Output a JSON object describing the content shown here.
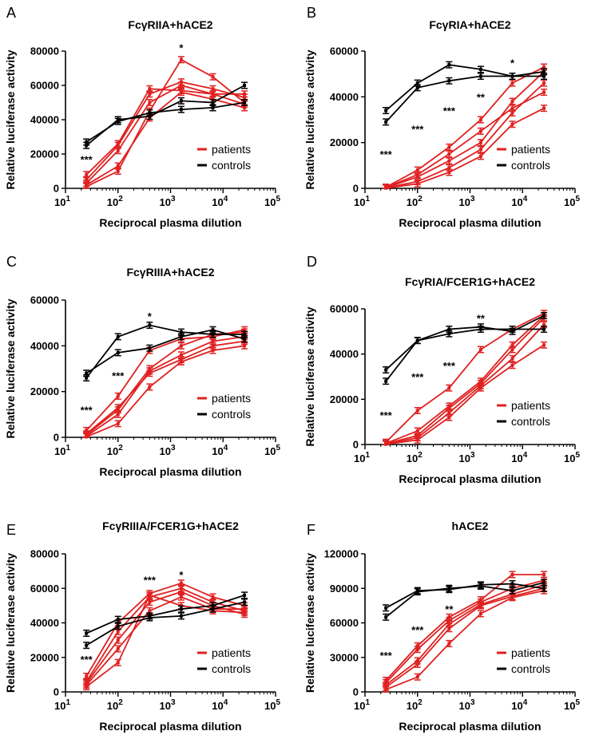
{
  "figure": {
    "description_free": true
  },
  "colors": {
    "patients": "#e02020",
    "controls": "#000000"
  },
  "chart_data": [
    {
      "panel": "A",
      "type": "line",
      "title": "FcγRIIA+hACE2",
      "xlabel": "Reciprocal plasma dilution",
      "ylabel": "Relative luciferase activity",
      "xscale": "log",
      "xlim": [
        10,
        100000
      ],
      "ylim": [
        0,
        80000
      ],
      "yticks": [
        0,
        20000,
        40000,
        60000,
        80000
      ],
      "legend": {
        "entries": [
          "patients",
          "controls"
        ],
        "position": "bottom-right"
      },
      "x": [
        25,
        100,
        400,
        1600,
        6400,
        25600
      ],
      "series": [
        {
          "group": "patients",
          "values": [
            1000,
            10000,
            45000,
            75000,
            65000,
            50000
          ]
        },
        {
          "group": "patients",
          "values": [
            3000,
            22000,
            50000,
            60000,
            55000,
            55000
          ]
        },
        {
          "group": "patients",
          "values": [
            5000,
            25000,
            55000,
            62000,
            58000,
            53000
          ]
        },
        {
          "group": "patients",
          "values": [
            8000,
            26000,
            58000,
            57000,
            55000,
            49000
          ]
        },
        {
          "group": "patients",
          "values": [
            2000,
            13000,
            41000,
            56000,
            52000,
            47000
          ]
        },
        {
          "group": "controls",
          "values": [
            25000,
            40000,
            42000,
            51000,
            50000,
            60000
          ]
        },
        {
          "group": "controls",
          "values": [
            27000,
            39000,
            44000,
            46000,
            47000,
            50000
          ]
        }
      ],
      "annotations": [
        {
          "x": 25,
          "y": 17000,
          "text": "***"
        },
        {
          "x": 1600,
          "y": 82000,
          "text": "*"
        }
      ]
    },
    {
      "panel": "B",
      "type": "line",
      "title": "FcγRIA+hACE2",
      "xlabel": "Reciprocal plasma dilution",
      "ylabel": "Relative luciferase activity",
      "xscale": "log",
      "xlim": [
        10,
        100000
      ],
      "ylim": [
        0,
        60000
      ],
      "yticks": [
        0,
        20000,
        40000,
        60000
      ],
      "legend": {
        "entries": [
          "patients",
          "controls"
        ],
        "position": "bottom-right"
      },
      "x": [
        25,
        100,
        400,
        1600,
        6400,
        25600
      ],
      "series": [
        {
          "group": "patients",
          "values": [
            500,
            8000,
            18000,
            30000,
            46000,
            53000
          ]
        },
        {
          "group": "patients",
          "values": [
            300,
            5000,
            12000,
            20000,
            38000,
            51000
          ]
        },
        {
          "group": "patients",
          "values": [
            200,
            3000,
            9000,
            17000,
            33000,
            46000
          ]
        },
        {
          "group": "patients",
          "values": [
            400,
            6000,
            15000,
            25000,
            35000,
            42000
          ]
        },
        {
          "group": "patients",
          "values": [
            100,
            2000,
            7000,
            14000,
            28000,
            35000
          ]
        },
        {
          "group": "controls",
          "values": [
            29000,
            44000,
            47000,
            49000,
            49000,
            49000
          ]
        },
        {
          "group": "controls",
          "values": [
            34000,
            46000,
            54000,
            52000,
            49000,
            51000
          ]
        }
      ],
      "annotations": [
        {
          "x": 25,
          "y": 15000,
          "text": "***"
        },
        {
          "x": 100,
          "y": 26000,
          "text": "***"
        },
        {
          "x": 400,
          "y": 34000,
          "text": "***"
        },
        {
          "x": 1600,
          "y": 40000,
          "text": "**"
        },
        {
          "x": 6400,
          "y": 55000,
          "text": "*"
        }
      ]
    },
    {
      "panel": "C",
      "type": "line",
      "title": "FcγRIIIA+hACE2",
      "xlabel": "Reciprocal plasma dilution",
      "ylabel": "Relative luciferase activity",
      "xscale": "log",
      "xlim": [
        10,
        100000
      ],
      "ylim": [
        0,
        60000
      ],
      "yticks": [
        0,
        20000,
        40000,
        60000
      ],
      "legend": {
        "entries": [
          "patients",
          "controls"
        ],
        "position": "bottom-right"
      },
      "x": [
        25,
        100,
        400,
        1600,
        6400,
        25600
      ],
      "series": [
        {
          "group": "patients",
          "values": [
            3000,
            18000,
            38000,
            43000,
            44000,
            47000
          ]
        },
        {
          "group": "patients",
          "values": [
            1000,
            12000,
            30000,
            40000,
            45000,
            46000
          ]
        },
        {
          "group": "patients",
          "values": [
            500,
            10000,
            29000,
            36000,
            42000,
            44000
          ]
        },
        {
          "group": "patients",
          "values": [
            1500,
            13000,
            28000,
            34000,
            40000,
            42000
          ]
        },
        {
          "group": "patients",
          "values": [
            200,
            6000,
            22000,
            33000,
            38000,
            40000
          ]
        },
        {
          "group": "controls",
          "values": [
            26000,
            44000,
            49000,
            46000,
            45000,
            45000
          ]
        },
        {
          "group": "controls",
          "values": [
            28000,
            37000,
            39000,
            44000,
            47000,
            43000
          ]
        }
      ],
      "annotations": [
        {
          "x": 25,
          "y": 12000,
          "text": "***"
        },
        {
          "x": 100,
          "y": 27000,
          "text": "***"
        },
        {
          "x": 400,
          "y": 53000,
          "text": "*"
        }
      ]
    },
    {
      "panel": "D",
      "type": "line",
      "title": "FcγRIA/FCER1G+hACE2",
      "xlabel": "Reciprocal plasma dilution",
      "ylabel": "Relative luciferase activity",
      "xscale": "log",
      "xlim": [
        10,
        100000
      ],
      "ylim": [
        0,
        60000
      ],
      "yticks": [
        0,
        20000,
        40000,
        60000
      ],
      "legend": {
        "entries": [
          "patients",
          "controls"
        ],
        "position": "bottom-right"
      },
      "x": [
        25,
        100,
        400,
        1600,
        6400,
        25600
      ],
      "series": [
        {
          "group": "patients",
          "values": [
            1000,
            15000,
            25000,
            42000,
            51000,
            58000
          ]
        },
        {
          "group": "patients",
          "values": [
            500,
            6000,
            17000,
            28000,
            44000,
            57000
          ]
        },
        {
          "group": "patients",
          "values": [
            300,
            4000,
            16000,
            27000,
            42000,
            56000
          ]
        },
        {
          "group": "patients",
          "values": [
            200,
            3000,
            14000,
            26000,
            38000,
            53000
          ]
        },
        {
          "group": "patients",
          "values": [
            100,
            2000,
            12000,
            25000,
            35000,
            44000
          ]
        },
        {
          "group": "controls",
          "values": [
            33000,
            46000,
            49000,
            51000,
            51000,
            51000
          ]
        },
        {
          "group": "controls",
          "values": [
            28000,
            46000,
            51000,
            52000,
            50000,
            57000
          ]
        }
      ],
      "annotations": [
        {
          "x": 25,
          "y": 13000,
          "text": "***"
        },
        {
          "x": 100,
          "y": 30000,
          "text": "***"
        },
        {
          "x": 400,
          "y": 35000,
          "text": "***"
        },
        {
          "x": 1600,
          "y": 56000,
          "text": "**"
        }
      ]
    },
    {
      "panel": "E",
      "type": "line",
      "title": "FcγRIIIA/FCER1G+hACE2",
      "xlabel": "Reciprocal plasma dilution",
      "ylabel": "Relative luciferase activity",
      "xscale": "log",
      "xlim": [
        10,
        100000
      ],
      "ylim": [
        0,
        80000
      ],
      "yticks": [
        0,
        20000,
        40000,
        60000,
        80000
      ],
      "legend": {
        "entries": [
          "patients",
          "controls"
        ],
        "position": "bottom-right"
      },
      "x": [
        25,
        100,
        400,
        1600,
        6400,
        25600
      ],
      "series": [
        {
          "group": "patients",
          "values": [
            9000,
            40000,
            57000,
            63000,
            55000,
            50000
          ]
        },
        {
          "group": "patients",
          "values": [
            6000,
            35000,
            55000,
            60000,
            52000,
            47000
          ]
        },
        {
          "group": "patients",
          "values": [
            5000,
            30000,
            52000,
            58000,
            50000,
            45000
          ]
        },
        {
          "group": "patients",
          "values": [
            4000,
            25000,
            47000,
            55000,
            48000,
            48000
          ]
        },
        {
          "group": "patients",
          "values": [
            3000,
            17000,
            56000,
            50000,
            47000,
            46000
          ]
        },
        {
          "group": "controls",
          "values": [
            34000,
            42000,
            44000,
            48000,
            50000,
            56000
          ]
        },
        {
          "group": "controls",
          "values": [
            27000,
            38000,
            43000,
            44000,
            48000,
            52000
          ]
        }
      ],
      "annotations": [
        {
          "x": 25,
          "y": 19000,
          "text": "***"
        },
        {
          "x": 400,
          "y": 65000,
          "text": "***"
        },
        {
          "x": 1600,
          "y": 68000,
          "text": "*"
        }
      ]
    },
    {
      "panel": "F",
      "type": "line",
      "title": "hACE2",
      "xlabel": "Reciprocal plasma dilution",
      "ylabel": "Relative luciferase activity",
      "xscale": "log",
      "xlim": [
        10,
        100000
      ],
      "ylim": [
        0,
        120000
      ],
      "yticks": [
        0,
        30000,
        60000,
        90000,
        120000
      ],
      "legend": {
        "entries": [
          "patients",
          "controls"
        ],
        "position": "bottom-right"
      },
      "x": [
        25,
        100,
        400,
        1600,
        6400,
        25600
      ],
      "series": [
        {
          "group": "patients",
          "values": [
            10000,
            40000,
            65000,
            80000,
            102000,
            102000
          ]
        },
        {
          "group": "patients",
          "values": [
            8000,
            37000,
            62000,
            78000,
            90000,
            97000
          ]
        },
        {
          "group": "patients",
          "values": [
            6000,
            27000,
            59000,
            76000,
            85000,
            93000
          ]
        },
        {
          "group": "patients",
          "values": [
            4000,
            24000,
            55000,
            75000,
            83000,
            90000
          ]
        },
        {
          "group": "patients",
          "values": [
            2000,
            13000,
            42000,
            68000,
            82000,
            88000
          ]
        },
        {
          "group": "controls",
          "values": [
            73000,
            88000,
            89000,
            93000,
            94000,
            90000
          ]
        },
        {
          "group": "controls",
          "values": [
            65000,
            87000,
            90000,
            92000,
            88000,
            95000
          ]
        }
      ],
      "annotations": [
        {
          "x": 25,
          "y": 32000,
          "text": "***"
        },
        {
          "x": 100,
          "y": 54000,
          "text": "***"
        },
        {
          "x": 400,
          "y": 72000,
          "text": "**"
        }
      ]
    }
  ]
}
